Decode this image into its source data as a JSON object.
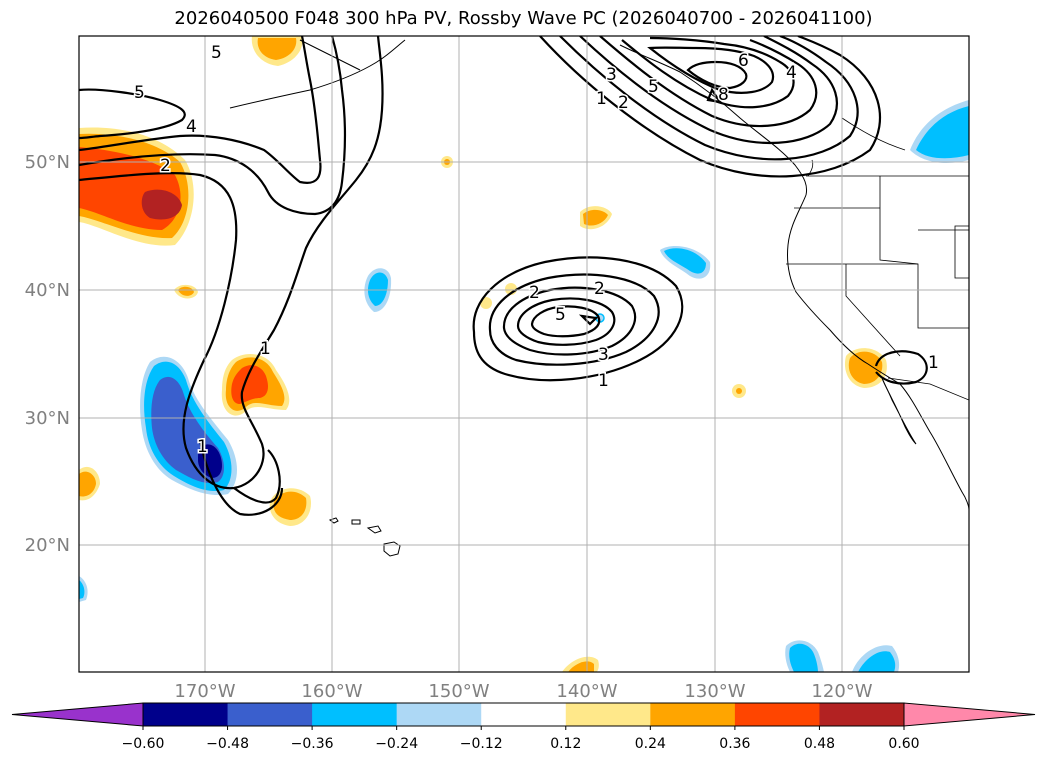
{
  "title": "2026040500 F048 300 hPa PV, Rossby Wave PC (2026040700 - 2026041100)",
  "lat_labels": [
    "50°N",
    "40°N",
    "30°N",
    "20°N"
  ],
  "lon_labels": [
    "170°W",
    "160°W",
    "150°W",
    "140°W",
    "130°W",
    "120°W"
  ],
  "contour_labels": [
    "5",
    "5",
    "4",
    "2",
    "1",
    "1",
    "2",
    "2",
    "4",
    "5",
    "3",
    "1",
    "3",
    "5",
    "1",
    "2",
    "6",
    "4",
    "8",
    "1"
  ],
  "colorbar": {
    "ticks": [
      "−0.60",
      "−0.48",
      "−0.36",
      "−0.24",
      "−0.12",
      "0.12",
      "0.24",
      "0.36",
      "0.48",
      "0.60"
    ],
    "colors": [
      "#9932cc",
      "#00008b",
      "#3a5fcd",
      "#00bfff",
      "#add8f5",
      "#ffffff",
      "#ffe88a",
      "#ffa500",
      "#ff4500",
      "#b22222",
      "#ff88aa"
    ]
  },
  "colors": {
    "orange": "#ffa500",
    "light_orange": "#ffe88a",
    "red_orange": "#ff4500",
    "dark_red": "#b22222",
    "cyan": "#00bfff",
    "light_blue": "#add8f5",
    "royal_blue": "#3a5fcd",
    "navy": "#00008b"
  }
}
